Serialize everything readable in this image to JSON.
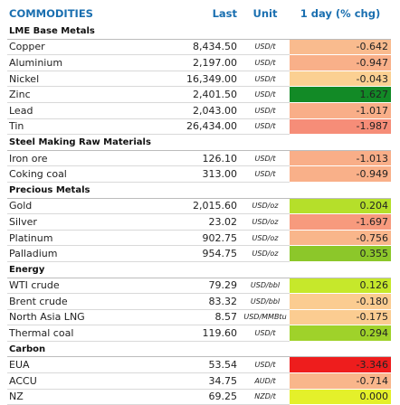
{
  "table": {
    "headers": {
      "name": "COMMODITIES",
      "last": "Last",
      "unit": "Unit",
      "chg": "1 day (% chg)"
    },
    "groups": [
      {
        "title": "LME Base Metals",
        "rows": [
          {
            "name": "Copper",
            "last": "8,434.50",
            "unit": "USD/t",
            "chg": "-0.642",
            "color": "#f9bb8e"
          },
          {
            "name": "Aluminium",
            "last": "2,197.00",
            "unit": "USD/t",
            "chg": "-0.947",
            "color": "#f9b089"
          },
          {
            "name": "Nickel",
            "last": "16,349.00",
            "unit": "USD/t",
            "chg": "-0.043",
            "color": "#fbd092"
          },
          {
            "name": "Zinc",
            "last": "2,401.50",
            "unit": "USD/t",
            "chg": "1.627",
            "color": "#128a26"
          },
          {
            "name": "Lead",
            "last": "2,043.00",
            "unit": "USD/t",
            "chg": "-1.017",
            "color": "#f9ae88"
          },
          {
            "name": "Tin",
            "last": "26,434.00",
            "unit": "USD/t",
            "chg": "-1.987",
            "color": "#f68d78"
          }
        ]
      },
      {
        "title": "Steel Making Raw Materials",
        "rows": [
          {
            "name": "Iron ore",
            "last": "126.10",
            "unit": "USD/t",
            "chg": "-1.013",
            "color": "#f9ae88"
          },
          {
            "name": "Coking coal",
            "last": "313.00",
            "unit": "USD/t",
            "chg": "-0.949",
            "color": "#f9b089"
          }
        ]
      },
      {
        "title": "Precious Metals",
        "rows": [
          {
            "name": "Gold",
            "last": "2,015.60",
            "unit": "USD/oz",
            "chg": "0.204",
            "color": "#b5df2a"
          },
          {
            "name": "Silver",
            "last": "23.02",
            "unit": "USD/oz",
            "chg": "-1.697",
            "color": "#f79a7d"
          },
          {
            "name": "Platinum",
            "last": "902.75",
            "unit": "USD/oz",
            "chg": "-0.756",
            "color": "#f9b68b"
          },
          {
            "name": "Palladium",
            "last": "954.75",
            "unit": "USD/oz",
            "chg": "0.355",
            "color": "#8cc72a"
          }
        ]
      },
      {
        "title": "Energy",
        "rows": [
          {
            "name": "WTI crude",
            "last": "79.29",
            "unit": "USD/bbl",
            "chg": "0.126",
            "color": "#c6e82b"
          },
          {
            "name": "Brent crude",
            "last": "83.32",
            "unit": "USD/bbl",
            "chg": "-0.180",
            "color": "#fbcc91"
          },
          {
            "name": "North Asia LNG",
            "last": "8.57",
            "unit": "USD/MMBtu",
            "chg": "-0.175",
            "color": "#fbcc91"
          },
          {
            "name": "Thermal coal",
            "last": "119.60",
            "unit": "USD/t",
            "chg": "0.294",
            "color": "#9fd22a"
          }
        ]
      },
      {
        "title": "Carbon",
        "rows": [
          {
            "name": "EUA",
            "last": "53.54",
            "unit": "USD/t",
            "chg": "-3.346",
            "color": "#ee1d1d"
          },
          {
            "name": "ACCU",
            "last": "34.75",
            "unit": "AUD/t",
            "chg": "-0.714",
            "color": "#f9b68b"
          },
          {
            "name": "NZ",
            "last": "69.25",
            "unit": "NZD/t",
            "chg": "0.000",
            "color": "#e4f02a"
          }
        ]
      }
    ]
  }
}
